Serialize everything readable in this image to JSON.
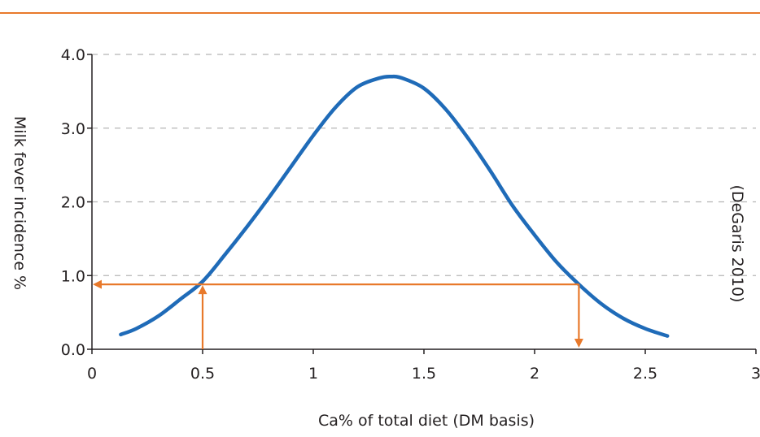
{
  "colors": {
    "curve": "#1f6bb8",
    "arrow": "#e8792b",
    "top_rule": "#e8792b",
    "grid": "#b5b5b5",
    "axis": "#231f20",
    "text": "#231f20"
  },
  "chart_data": {
    "type": "line",
    "title": "",
    "xlabel": "Ca% of total diet (DM basis)",
    "ylabel": "Milk fever incidence %",
    "source_note": "(DeGaris 2010)",
    "xlim": [
      0,
      3
    ],
    "ylim": [
      0,
      4
    ],
    "x_ticks": [
      0,
      0.5,
      1,
      1.5,
      2,
      2.5,
      3
    ],
    "x_tick_labels": [
      "0",
      "0.5",
      "1",
      "1.5",
      "2",
      "2.5",
      "3"
    ],
    "y_ticks": [
      0,
      1,
      2,
      3,
      4
    ],
    "y_tick_labels": [
      "0.0",
      "1.0",
      "2.0",
      "3.0",
      "4.0"
    ],
    "grid": "horizontal dashed",
    "series": [
      {
        "x": [
          0.13,
          0.2,
          0.3,
          0.4,
          0.5,
          0.6,
          0.7,
          0.8,
          0.9,
          1.0,
          1.1,
          1.2,
          1.3,
          1.35,
          1.4,
          1.5,
          1.6,
          1.7,
          1.8,
          1.9,
          2.0,
          2.1,
          2.2,
          2.3,
          2.4,
          2.5,
          2.6
        ],
        "y": [
          0.2,
          0.28,
          0.45,
          0.68,
          0.92,
          1.28,
          1.66,
          2.06,
          2.48,
          2.9,
          3.28,
          3.56,
          3.68,
          3.7,
          3.68,
          3.54,
          3.25,
          2.86,
          2.42,
          1.95,
          1.55,
          1.18,
          0.88,
          0.62,
          0.42,
          0.28,
          0.18
        ]
      }
    ],
    "annotations": [
      {
        "type": "horizontal-arrow",
        "y": 0.88,
        "x_from": 2.2,
        "x_to": 0
      },
      {
        "type": "vertical-arrow",
        "x": 0.5,
        "y_from": 0,
        "y_to": 0.88
      },
      {
        "type": "vertical-arrow",
        "x": 2.2,
        "y_from": 0.88,
        "y_to": 0
      }
    ]
  }
}
